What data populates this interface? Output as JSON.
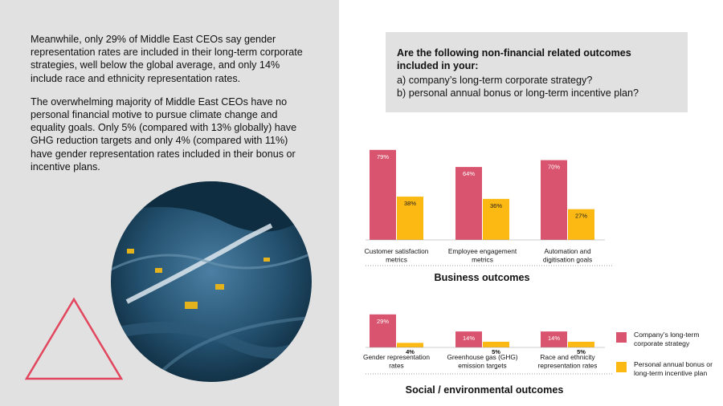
{
  "body_paragraphs": [
    "Meanwhile, only 29% of Middle East CEOs say gender representation rates are included in their long-term corporate strategies, well below the global average, and only 14% include race and ethnicity representation rates.",
    "The overwhelming majority of Middle East CEOs have no personal financial motive to pursue climate change and equality goals. Only 5% (compared with 13% globally) have GHG reduction targets and only 4% (compared with 11%) have gender representation rates included in their bonus or incentive plans."
  ],
  "question": {
    "title": "Are the following non-financial related outcomes included in your:",
    "option_a": "a) company’s long-term corporate strategy?",
    "option_b": "b) personal annual bonus or long-term incentive plan?"
  },
  "colors": {
    "strategy": "#d9546e",
    "bonus": "#fdb913",
    "panel": "#e1e1e1",
    "triangle": "#e2465e"
  },
  "chart_data": [
    {
      "type": "bar",
      "title": "Business outcomes",
      "categories": [
        "Customer satisfaction metrics",
        "Employee engagement metrics",
        "Automation and digitisation goals"
      ],
      "series": [
        {
          "name": "Company’s long-term corporate strategy",
          "values": [
            79,
            64,
            70
          ],
          "labels": [
            "79%",
            "64%",
            "70%"
          ]
        },
        {
          "name": "Personal annual bonus or long-term incentive plan",
          "values": [
            38,
            36,
            27
          ],
          "labels": [
            "38%",
            "36%",
            "27%"
          ]
        }
      ],
      "ylim": [
        0,
        100
      ]
    },
    {
      "type": "bar",
      "title": "Social / environmental outcomes",
      "categories": [
        "Gender representation rates",
        "Greenhouse gas (GHG) emission targets",
        "Race and ethnicity representation rates"
      ],
      "series": [
        {
          "name": "Company’s long-term corporate strategy",
          "values": [
            29,
            14,
            14
          ],
          "labels": [
            "29%",
            "14%",
            "14%"
          ]
        },
        {
          "name": "Personal annual bonus or long-term incentive plan",
          "values": [
            4,
            5,
            5
          ],
          "labels": [
            "4%",
            "5%",
            "5%"
          ]
        }
      ],
      "ylim": [
        0,
        100
      ]
    }
  ],
  "legend": [
    {
      "label": "Company’s long-term corporate strategy",
      "color": "#d9546e"
    },
    {
      "label": "Personal annual bonus or long-term incentive plan",
      "color": "#fdb913"
    }
  ]
}
